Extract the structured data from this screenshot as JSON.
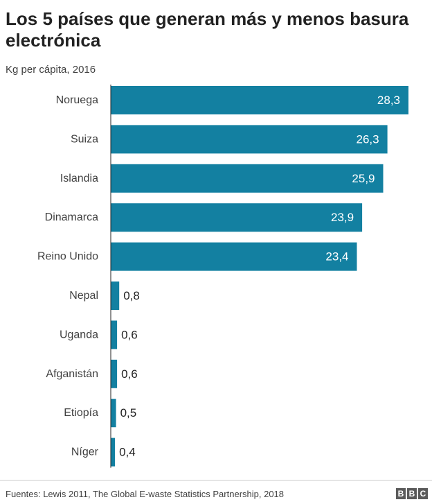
{
  "header": {
    "title": "Los 5 países que generan más y menos basura electrónica",
    "subtitle": "Kg per cápita, 2016"
  },
  "footer": {
    "source": "Fuentes: Lewis 2011, The Global E-waste Statistics Partnership, 2018",
    "logo_letters": [
      "B",
      "B",
      "C"
    ]
  },
  "chart_data": {
    "type": "bar",
    "orientation": "horizontal",
    "title": "Los 5 países que generan más y menos basura electrónica",
    "ylabel": "Kg per cápita, 2016",
    "categories": [
      "Noruega",
      "Suiza",
      "Islandia",
      "Dinamarca",
      "Reino Unido",
      "Nepal",
      "Uganda",
      "Afganistán",
      "Etiopía",
      "Níger"
    ],
    "values": [
      28.3,
      26.3,
      25.9,
      23.9,
      23.4,
      0.8,
      0.6,
      0.6,
      0.5,
      0.4
    ],
    "value_labels": [
      "28,3",
      "26,3",
      "25,9",
      "23,9",
      "23,4",
      "0,8",
      "0,6",
      "0,6",
      "0,5",
      "0,4"
    ],
    "xlim": [
      0,
      28.3
    ],
    "grid": false,
    "legend": "none",
    "bar_color": "#1380A1"
  }
}
